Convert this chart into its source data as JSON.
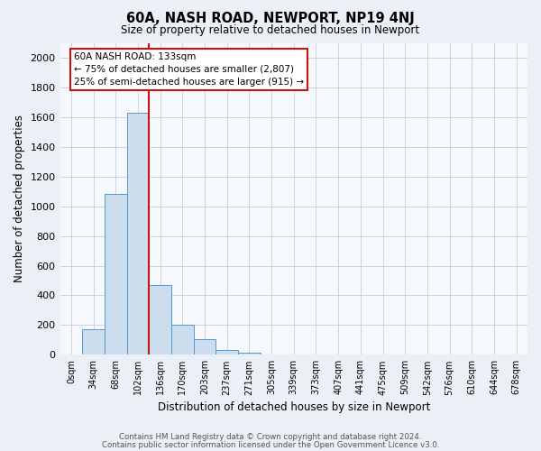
{
  "title": "60A, NASH ROAD, NEWPORT, NP19 4NJ",
  "subtitle": "Size of property relative to detached houses in Newport",
  "xlabel": "Distribution of detached houses by size in Newport",
  "ylabel": "Number of detached properties",
  "bar_color": "#ccdded",
  "bar_edge_color": "#5599cc",
  "vline_color": "#cc1111",
  "annotation_title": "60A NASH ROAD: 133sqm",
  "annotation_line1": "← 75% of detached houses are smaller (2,807)",
  "annotation_line2": "25% of semi-detached houses are larger (915) →",
  "categories": [
    "0sqm",
    "34sqm",
    "68sqm",
    "102sqm",
    "136sqm",
    "170sqm",
    "203sqm",
    "237sqm",
    "271sqm",
    "305sqm",
    "339sqm",
    "373sqm",
    "407sqm",
    "441sqm",
    "475sqm",
    "509sqm",
    "542sqm",
    "576sqm",
    "610sqm",
    "644sqm",
    "678sqm"
  ],
  "values": [
    0,
    170,
    1085,
    1630,
    470,
    200,
    105,
    35,
    15,
    0,
    0,
    0,
    0,
    0,
    0,
    0,
    0,
    0,
    0,
    0,
    0
  ],
  "ylim": [
    0,
    2100
  ],
  "yticks": [
    0,
    200,
    400,
    600,
    800,
    1000,
    1200,
    1400,
    1600,
    1800,
    2000
  ],
  "footer1": "Contains HM Land Registry data © Crown copyright and database right 2024.",
  "footer2": "Contains public sector information licensed under the Open Government Licence v3.0.",
  "background_color": "#eaf0f6",
  "plot_background_color": "#f5f8fc",
  "grid_color": "#c5cdd8"
}
